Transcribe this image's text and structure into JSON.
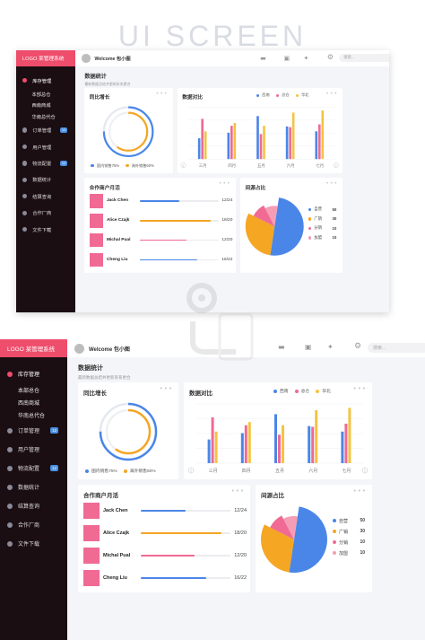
{
  "hero": {
    "title": "UI SCREEN"
  },
  "app": {
    "logo": "LOGO 某管理系统",
    "welcome": "Welcome 包小图",
    "search_placeholder": "搜索...",
    "page_title": "数据统计",
    "page_subtitle": "最新数据总结并更新系系更合"
  },
  "sidebar": {
    "items": [
      {
        "label": "库存管理",
        "active": true,
        "sub": false,
        "badge": ""
      },
      {
        "label": "本部总仓",
        "active": false,
        "sub": true,
        "badge": ""
      },
      {
        "label": "西南商城",
        "active": false,
        "sub": true,
        "badge": ""
      },
      {
        "label": "华南总代仓",
        "active": false,
        "sub": true,
        "badge": ""
      },
      {
        "label": "订单管理",
        "active": false,
        "sub": false,
        "badge": "12"
      },
      {
        "label": "用户管理",
        "active": false,
        "sub": false,
        "badge": ""
      },
      {
        "label": "物流配置",
        "active": false,
        "sub": false,
        "badge": "12"
      },
      {
        "label": "数据统计",
        "active": false,
        "sub": false,
        "badge": ""
      },
      {
        "label": "结算查询",
        "active": false,
        "sub": false,
        "badge": ""
      },
      {
        "label": "合作厂商",
        "active": false,
        "sub": false,
        "badge": ""
      },
      {
        "label": "文件下载",
        "active": false,
        "sub": false,
        "badge": ""
      }
    ]
  },
  "growth": {
    "title": "同比增长",
    "more": "•••",
    "domestic_label": "国内销售75%",
    "overseas_label": "海外销售60%",
    "domestic_pct": 75,
    "overseas_pct": 60,
    "domestic_color": "#4a86e8",
    "overseas_color": "#f5a623"
  },
  "compare": {
    "title": "数据对比",
    "more": "•••",
    "legend": [
      {
        "name": "西南",
        "color": "#4a86e8"
      },
      {
        "name": "总仓",
        "color": "#f06a94"
      },
      {
        "name": "华北",
        "color": "#f5c342"
      }
    ],
    "nav_prev": "‹",
    "nav_next": "›"
  },
  "partners": {
    "title": "合作商户月活",
    "more": "•••",
    "rows": [
      {
        "name": "Jack Chen",
        "value": "12/24",
        "ratio": 0.5,
        "color": "#4a86e8"
      },
      {
        "name": "Alice Czajk",
        "value": "18/20",
        "ratio": 0.9,
        "color": "#f5a623"
      },
      {
        "name": "Michal Pual",
        "value": "12/20",
        "ratio": 0.6,
        "color": "#f06a94"
      },
      {
        "name": "Cheng Liu",
        "value": "16/22",
        "ratio": 0.73,
        "color": "#4a86e8"
      }
    ]
  },
  "source": {
    "title": "间源占比",
    "more": "•••"
  },
  "colors": {
    "accent": "#ee4d6b",
    "sidebar_bg": "#1b0e12"
  },
  "chart_data": [
    {
      "type": "bar",
      "categories": [
        "三月",
        "四月",
        "五月",
        "六月",
        "七月"
      ],
      "series": [
        {
          "name": "西南",
          "values": [
            30,
            38,
            62,
            47,
            40
          ]
        },
        {
          "name": "总仓",
          "values": [
            58,
            48,
            36,
            46,
            50
          ]
        },
        {
          "name": "华北",
          "values": [
            40,
            52,
            48,
            67,
            70
          ]
        }
      ],
      "ylim": [
        0,
        75
      ],
      "grid": true,
      "legend": "top-right"
    },
    {
      "type": "pie",
      "labels": [
        "自营",
        "广销",
        "分销",
        "加盟"
      ],
      "values": [
        50,
        30,
        10,
        10
      ],
      "colors": [
        "#4a86e8",
        "#f5a623",
        "#f06a94",
        "#f59db5"
      ]
    }
  ]
}
